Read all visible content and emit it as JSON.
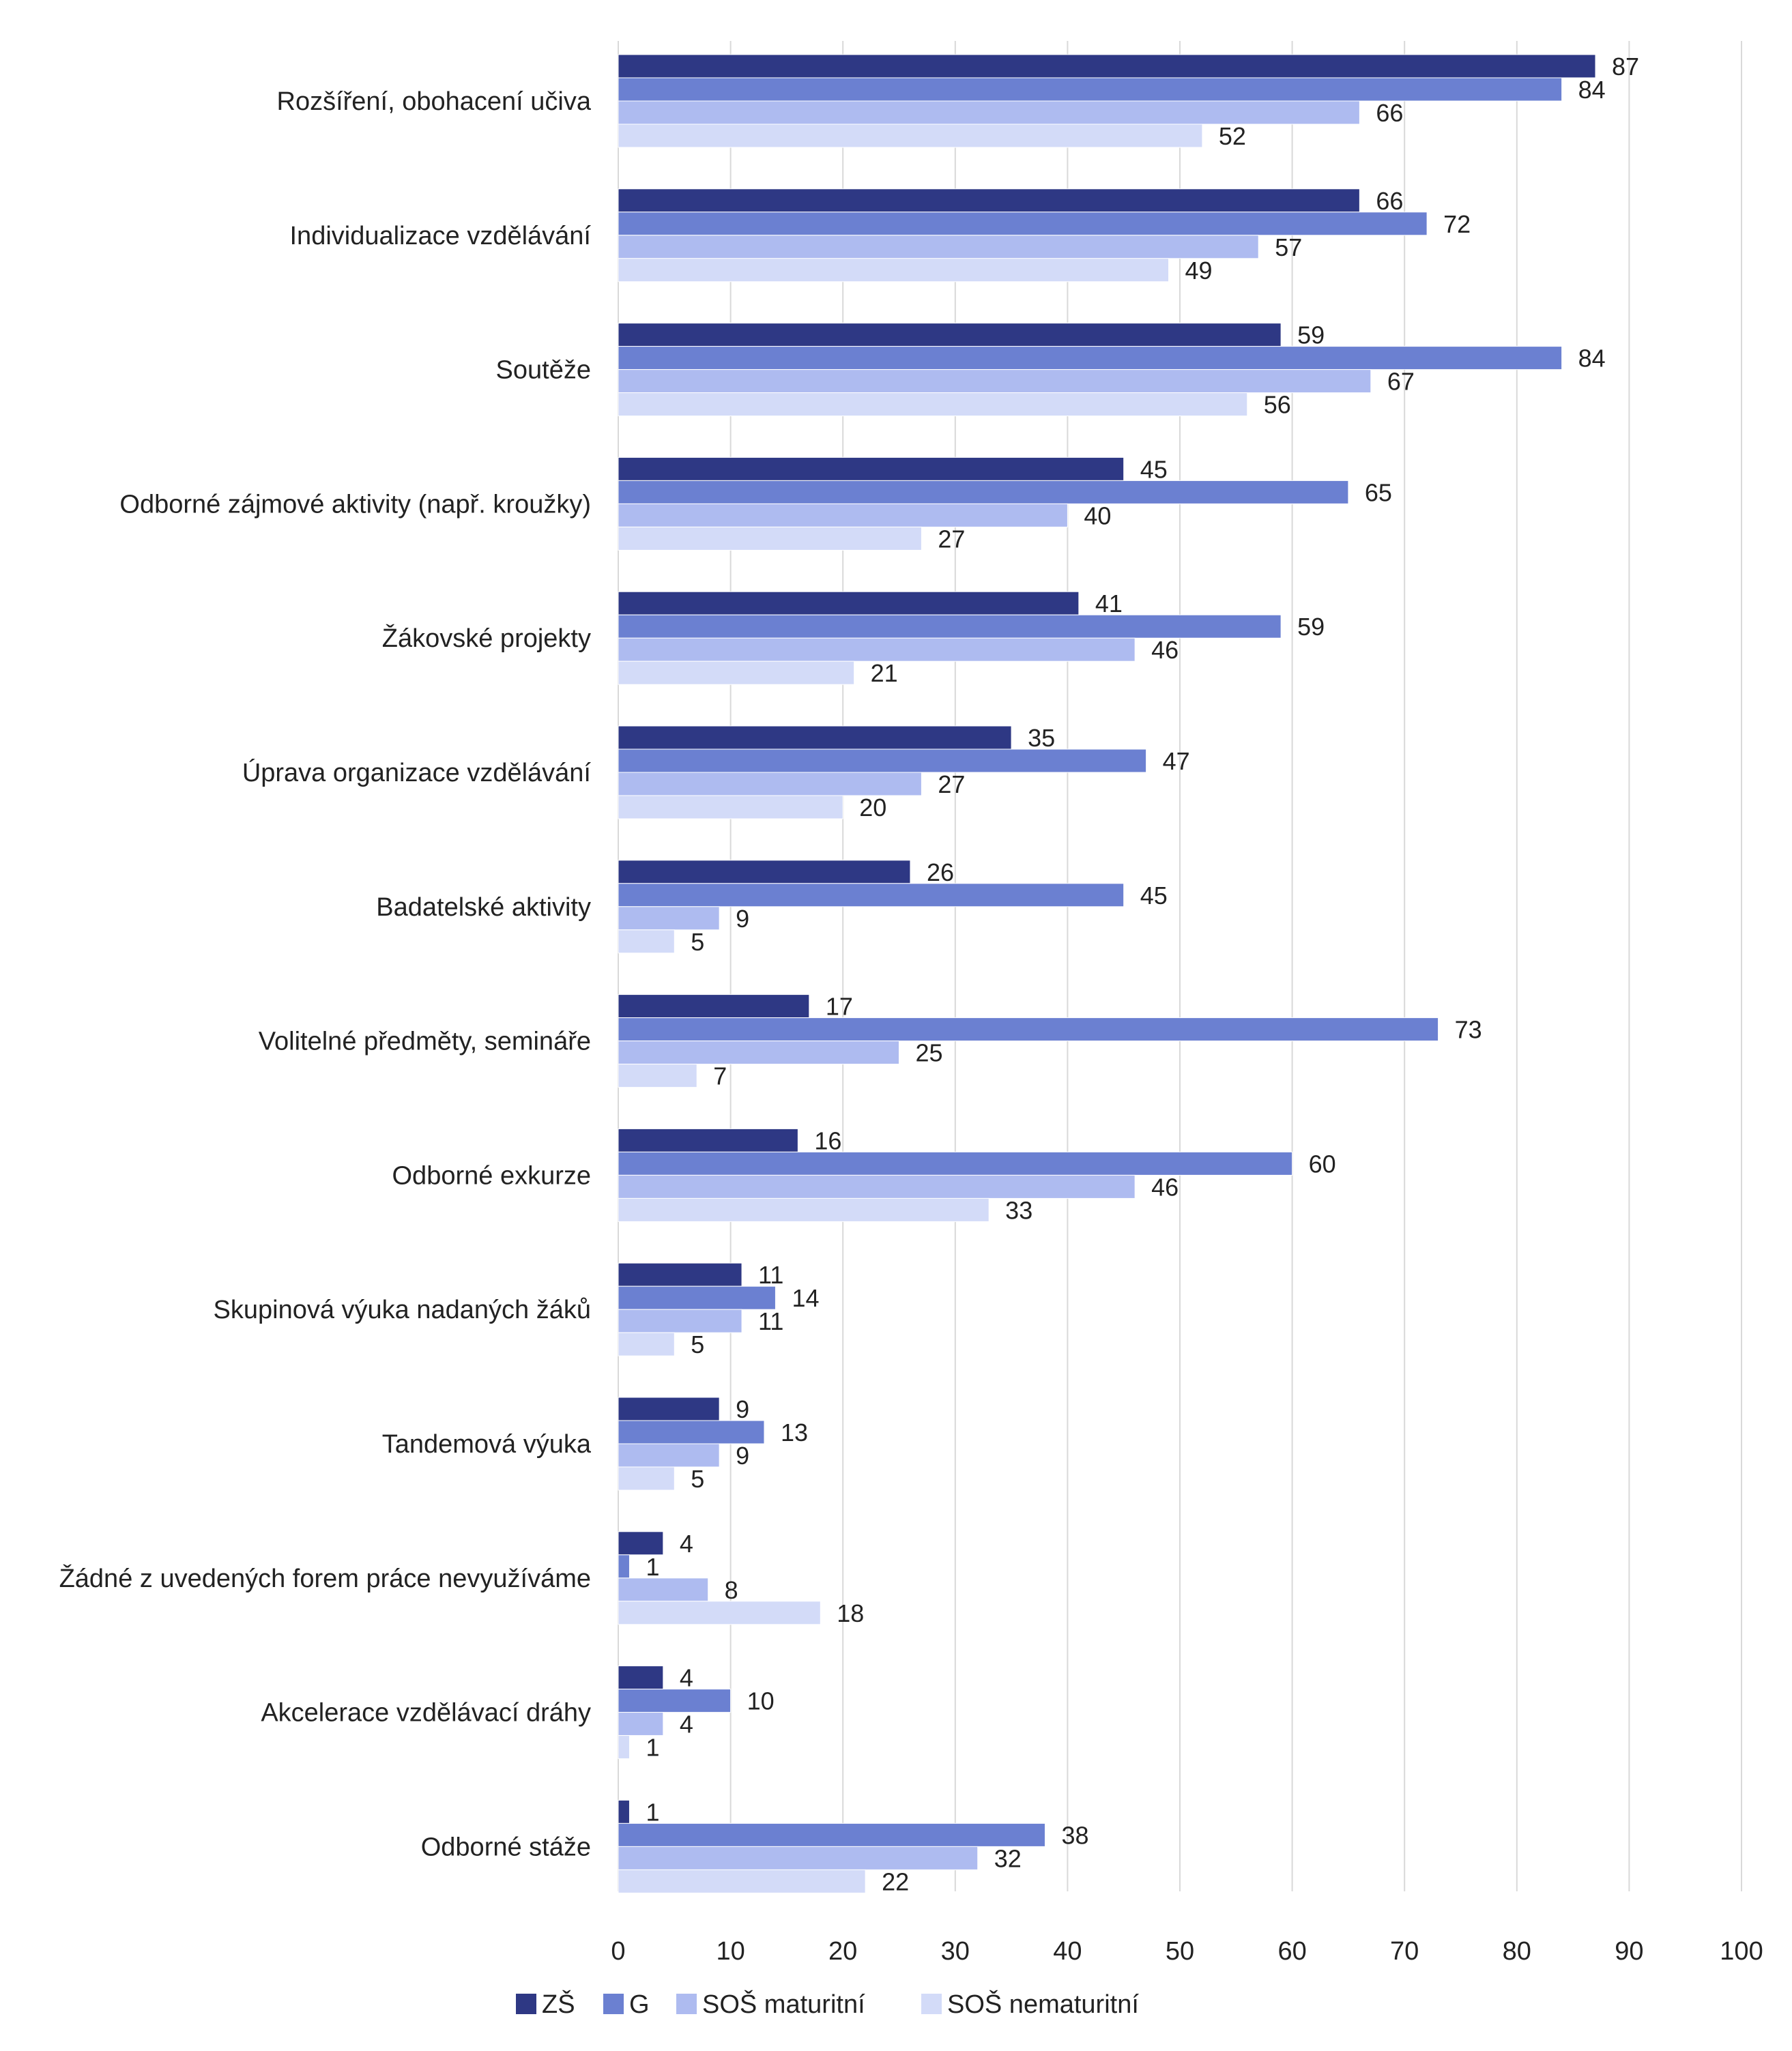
{
  "chart_data": {
    "type": "bar",
    "orientation": "horizontal",
    "categories": [
      "Rozšíření, obohacení učiva",
      "Individualizace vzdělávání",
      "Soutěže",
      "Odborné zájmové aktivity (např. kroužky)",
      "Žákovské projekty",
      "Úprava organizace vzdělávání",
      "Badatelské aktivity",
      "Volitelné předměty, semináře",
      "Odborné exkurze",
      "Skupinová výuka nadaných žáků",
      "Tandemová výuka",
      "Žádné z uvedených forem práce nevyužíváme",
      "Akcelerace vzdělávací dráhy",
      "Odborné stáže"
    ],
    "series": [
      {
        "name": "ZŠ",
        "color": "#2e3884",
        "values": [
          87,
          66,
          59,
          45,
          41,
          35,
          26,
          17,
          16,
          11,
          9,
          4,
          4,
          1
        ]
      },
      {
        "name": "G",
        "color": "#6b80d1",
        "values": [
          84,
          72,
          84,
          65,
          59,
          47,
          45,
          73,
          60,
          14,
          13,
          1,
          10,
          38
        ]
      },
      {
        "name": "SOŠ maturitní",
        "color": "#aebbf0",
        "values": [
          66,
          57,
          67,
          40,
          46,
          27,
          9,
          25,
          46,
          11,
          9,
          8,
          4,
          32
        ]
      },
      {
        "name": "SOŠ nematuritní",
        "color": "#d3dbf8",
        "values": [
          52,
          49,
          56,
          27,
          21,
          20,
          5,
          7,
          33,
          5,
          5,
          18,
          1,
          22
        ]
      }
    ],
    "x_ticks": [
      0,
      10,
      20,
      30,
      40,
      50,
      60,
      70,
      80,
      90,
      100
    ],
    "xlim": [
      0,
      100
    ],
    "title": "",
    "xlabel": "",
    "ylabel": "",
    "grid": "vertical",
    "legend": "bottom-center"
  }
}
